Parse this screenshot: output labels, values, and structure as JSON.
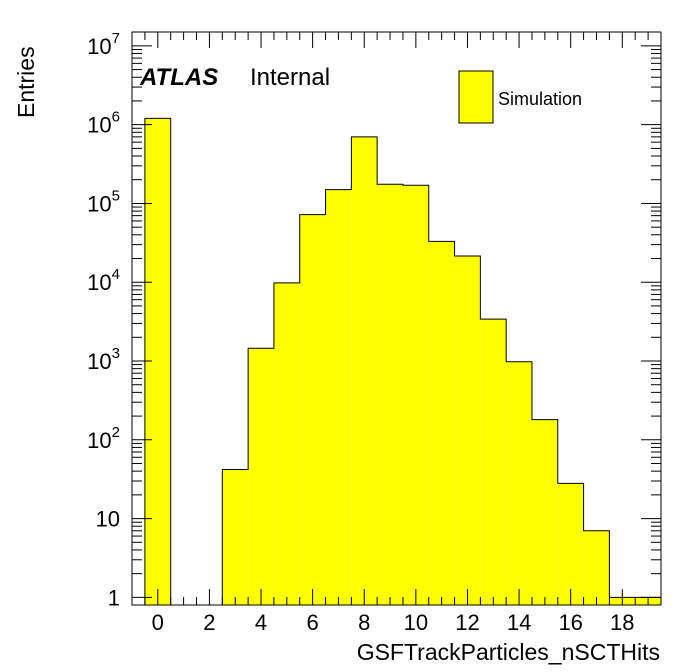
{
  "chart_data": {
    "type": "bar",
    "histogram": true,
    "xlabel": "GSFTrackParticles_nSCTHits",
    "ylabel": "Entries",
    "xlim": [
      -1,
      19.5
    ],
    "ylim": [
      0.8,
      15000000
    ],
    "yscale": "log",
    "bin_edges": [
      -0.5,
      0.5,
      1.5,
      2.5,
      3.5,
      4.5,
      5.5,
      6.5,
      7.5,
      8.5,
      9.5,
      10.5,
      11.5,
      12.5,
      13.5,
      14.5,
      15.5,
      16.5,
      17.5,
      18.5,
      19.5
    ],
    "series": [
      {
        "name": "Simulation",
        "color": "#ffff00",
        "values": [
          1200000,
          0,
          0,
          42,
          1450,
          9800,
          72000,
          150000,
          700000,
          175000,
          170000,
          33000,
          21500,
          3400,
          980,
          180,
          28,
          7,
          1,
          1
        ]
      }
    ],
    "x_ticks": [
      {
        "value": 0,
        "label": "0"
      },
      {
        "value": 2,
        "label": "2"
      },
      {
        "value": 4,
        "label": "4"
      },
      {
        "value": 6,
        "label": "6"
      },
      {
        "value": 8,
        "label": "8"
      },
      {
        "value": 10,
        "label": "10"
      },
      {
        "value": 12,
        "label": "12"
      },
      {
        "value": 14,
        "label": "14"
      },
      {
        "value": 16,
        "label": "16"
      },
      {
        "value": 18,
        "label": "18"
      }
    ],
    "y_ticks": [
      {
        "value": 1,
        "base": "1",
        "exp": ""
      },
      {
        "value": 10,
        "base": "10",
        "exp": ""
      },
      {
        "value": 100,
        "base": "10",
        "exp": "2"
      },
      {
        "value": 1000,
        "base": "10",
        "exp": "3"
      },
      {
        "value": 10000,
        "base": "10",
        "exp": "4"
      },
      {
        "value": 100000,
        "base": "10",
        "exp": "5"
      },
      {
        "value": 1000000,
        "base": "10",
        "exp": "6"
      },
      {
        "value": 10000000,
        "base": "10",
        "exp": "7"
      }
    ],
    "legend": {
      "placement": "top-right",
      "label": "Simulation"
    },
    "annotation": {
      "bold": "ATLAS",
      "text": "Internal"
    },
    "grid": false
  }
}
